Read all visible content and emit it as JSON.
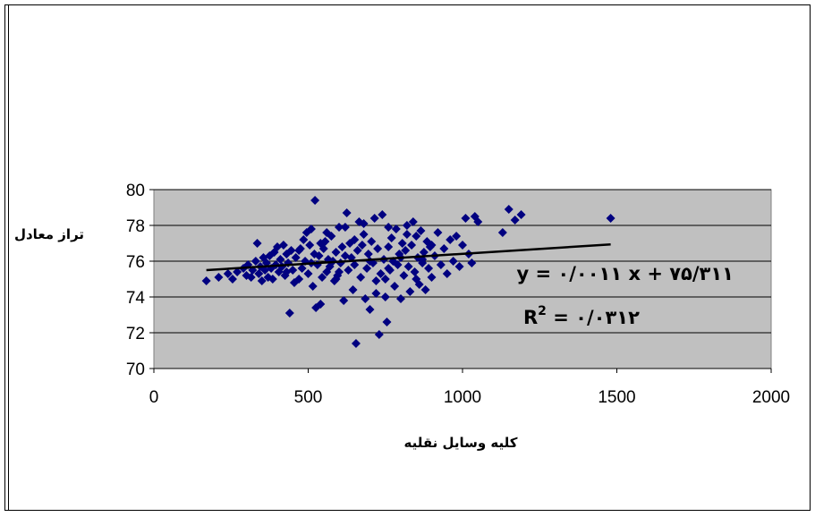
{
  "chart_data": {
    "type": "scatter",
    "xlabel": "کلیه وسایل نقلیه",
    "ylabel": "تراز معادل",
    "xlim": [
      0,
      2000
    ],
    "ylim": [
      70,
      80
    ],
    "x_ticks": [
      "0",
      "500",
      "1000",
      "1500",
      "2000"
    ],
    "y_ticks": [
      "70",
      "72",
      "74",
      "76",
      "78",
      "80"
    ],
    "grid": "horizontal",
    "plot_background": "#c0c0c0",
    "marker_color": "#000080",
    "marker": "diamond",
    "trendline": {
      "slope": 0.0011,
      "intercept": 75.311,
      "x_range": [
        170,
        1480
      ],
      "equation_label": "y = ۰/۰۰۱۱ x + ۷۵/۳۱۱",
      "r2_prefix": "R",
      "r2_sup": "2",
      "r2_value": " = ۰/۰۳۱۲"
    },
    "points": [
      [
        170,
        74.9
      ],
      [
        210,
        75.1
      ],
      [
        240,
        75.3
      ],
      [
        255,
        75.0
      ],
      [
        270,
        75.4
      ],
      [
        290,
        75.6
      ],
      [
        300,
        75.2
      ],
      [
        305,
        75.8
      ],
      [
        315,
        75.1
      ],
      [
        320,
        75.5
      ],
      [
        330,
        76.0
      ],
      [
        335,
        77.0
      ],
      [
        340,
        75.3
      ],
      [
        345,
        75.7
      ],
      [
        350,
        74.9
      ],
      [
        355,
        76.2
      ],
      [
        360,
        75.5
      ],
      [
        365,
        75.9
      ],
      [
        370,
        75.1
      ],
      [
        375,
        76.3
      ],
      [
        380,
        75.6
      ],
      [
        385,
        75.0
      ],
      [
        390,
        76.5
      ],
      [
        395,
        75.8
      ],
      [
        400,
        76.8
      ],
      [
        405,
        75.4
      ],
      [
        410,
        76.1
      ],
      [
        415,
        75.7
      ],
      [
        420,
        76.9
      ],
      [
        425,
        75.2
      ],
      [
        430,
        76.4
      ],
      [
        435,
        75.9
      ],
      [
        440,
        73.1
      ],
      [
        445,
        76.6
      ],
      [
        450,
        75.5
      ],
      [
        455,
        74.8
      ],
      [
        460,
        76.2
      ],
      [
        470,
        75.0
      ],
      [
        475,
        76.7
      ],
      [
        480,
        75.6
      ],
      [
        485,
        77.2
      ],
      [
        490,
        76.0
      ],
      [
        495,
        77.6
      ],
      [
        500,
        75.3
      ],
      [
        505,
        76.9
      ],
      [
        510,
        77.8
      ],
      [
        515,
        74.6
      ],
      [
        520,
        76.4
      ],
      [
        522,
        79.4
      ],
      [
        525,
        73.4
      ],
      [
        530,
        75.8
      ],
      [
        535,
        76.3
      ],
      [
        540,
        73.6
      ],
      [
        545,
        75.1
      ],
      [
        550,
        76.7
      ],
      [
        555,
        77.1
      ],
      [
        560,
        75.4
      ],
      [
        565,
        76.1
      ],
      [
        570,
        75.7
      ],
      [
        575,
        77.4
      ],
      [
        580,
        76.0
      ],
      [
        585,
        74.9
      ],
      [
        590,
        76.5
      ],
      [
        595,
        75.2
      ],
      [
        600,
        77.9
      ],
      [
        605,
        75.9
      ],
      [
        610,
        76.8
      ],
      [
        615,
        73.8
      ],
      [
        620,
        76.3
      ],
      [
        625,
        78.7
      ],
      [
        630,
        75.5
      ],
      [
        635,
        77.0
      ],
      [
        640,
        76.2
      ],
      [
        645,
        74.4
      ],
      [
        650,
        75.8
      ],
      [
        655,
        71.4
      ],
      [
        660,
        76.6
      ],
      [
        665,
        78.2
      ],
      [
        670,
        75.1
      ],
      [
        675,
        76.9
      ],
      [
        680,
        77.5
      ],
      [
        685,
        73.9
      ],
      [
        690,
        75.6
      ],
      [
        695,
        76.4
      ],
      [
        700,
        73.3
      ],
      [
        705,
        77.1
      ],
      [
        710,
        75.9
      ],
      [
        715,
        78.4
      ],
      [
        720,
        74.9
      ],
      [
        725,
        76.7
      ],
      [
        730,
        71.9
      ],
      [
        735,
        75.3
      ],
      [
        740,
        78.6
      ],
      [
        745,
        76.1
      ],
      [
        750,
        74.0
      ],
      [
        755,
        72.6
      ],
      [
        760,
        76.8
      ],
      [
        765,
        75.5
      ],
      [
        770,
        77.3
      ],
      [
        775,
        76.0
      ],
      [
        780,
        74.6
      ],
      [
        785,
        77.8
      ],
      [
        790,
        75.8
      ],
      [
        795,
        76.4
      ],
      [
        800,
        73.9
      ],
      [
        805,
        77.0
      ],
      [
        810,
        75.2
      ],
      [
        815,
        76.6
      ],
      [
        820,
        78.0
      ],
      [
        825,
        75.7
      ],
      [
        830,
        74.3
      ],
      [
        835,
        76.9
      ],
      [
        840,
        78.2
      ],
      [
        845,
        75.4
      ],
      [
        850,
        77.4
      ],
      [
        855,
        76.2
      ],
      [
        860,
        74.7
      ],
      [
        865,
        77.7
      ],
      [
        870,
        75.9
      ],
      [
        875,
        76.5
      ],
      [
        880,
        74.4
      ],
      [
        885,
        77.1
      ],
      [
        890,
        75.6
      ],
      [
        895,
        76.8
      ],
      [
        900,
        75.1
      ],
      [
        910,
        76.3
      ],
      [
        920,
        77.6
      ],
      [
        930,
        75.8
      ],
      [
        940,
        76.7
      ],
      [
        950,
        75.3
      ],
      [
        960,
        77.2
      ],
      [
        970,
        76.0
      ],
      [
        980,
        77.4
      ],
      [
        990,
        75.7
      ],
      [
        1000,
        76.9
      ],
      [
        1010,
        78.4
      ],
      [
        1020,
        76.4
      ],
      [
        1030,
        75.9
      ],
      [
        1040,
        78.5
      ],
      [
        1050,
        78.2
      ],
      [
        1130,
        77.6
      ],
      [
        1150,
        78.9
      ],
      [
        1170,
        78.3
      ],
      [
        1190,
        78.6
      ],
      [
        1480,
        78.4
      ],
      [
        560,
        77.6
      ],
      [
        620,
        77.9
      ],
      [
        680,
        78.1
      ],
      [
        760,
        77.9
      ],
      [
        820,
        77.5
      ],
      [
        870,
        76.1
      ],
      [
        590,
        75.0
      ],
      [
        720,
        74.2
      ],
      [
        800,
        76.2
      ],
      [
        650,
        77.2
      ],
      [
        470,
        76.6
      ],
      [
        430,
        75.4
      ],
      [
        510,
        75.9
      ],
      [
        600,
        75.4
      ],
      [
        700,
        76.0
      ],
      [
        750,
        75.0
      ],
      [
        850,
        75.0
      ],
      [
        900,
        76.9
      ],
      [
        760,
        75.6
      ],
      [
        540,
        77.0
      ]
    ]
  }
}
